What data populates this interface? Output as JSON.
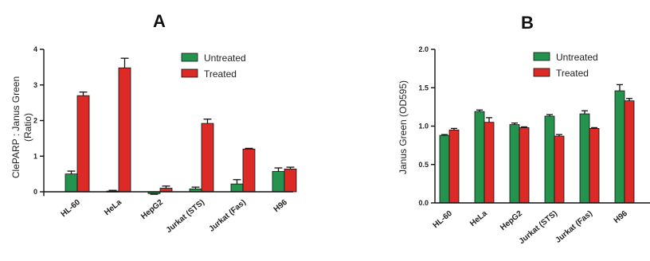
{
  "colors": {
    "untreated": "#24934e",
    "treated": "#dc2a26",
    "axis": "#111111"
  },
  "chart_data": [
    {
      "type": "bar",
      "title": "A",
      "ylabel": [
        "ClePARP : Janus Green",
        "(Ratio)"
      ],
      "ylim": [
        0,
        4
      ],
      "yticks": [
        "0",
        "1",
        "2",
        "3",
        "4"
      ],
      "yticks_values": [
        0,
        1,
        2,
        3,
        4
      ],
      "categories": [
        "HL-60",
        "HeLa",
        "HepG2",
        "Jurkat (STS)",
        "Jurkat (Fas)",
        "H96"
      ],
      "legend": "top-right",
      "series": [
        {
          "name": "Untreated",
          "values": [
            0.5,
            0.02,
            -0.05,
            0.08,
            0.22,
            0.57
          ],
          "errors": [
            0.08,
            0.02,
            0.02,
            0.05,
            0.12,
            0.1
          ]
        },
        {
          "name": "Treated",
          "values": [
            2.7,
            3.48,
            0.1,
            1.92,
            1.2,
            0.64
          ],
          "errors": [
            0.1,
            0.27,
            0.06,
            0.12,
            0.02,
            0.05
          ]
        }
      ]
    },
    {
      "type": "bar",
      "title": "B",
      "ylabel": [
        "Janus Green (OD595)"
      ],
      "ylim": [
        0,
        2.0
      ],
      "yticks": [
        "0.0",
        "0.5",
        "1.0",
        "1.5",
        "2.0"
      ],
      "yticks_values": [
        0,
        0.5,
        1.0,
        1.5,
        2.0
      ],
      "categories": [
        "HL-60",
        "HeLa",
        "HepG2",
        "Jurkat (STS)",
        "Jurkat (Fas)",
        "H96"
      ],
      "legend": "top-right",
      "series": [
        {
          "name": "Untreated",
          "values": [
            0.88,
            1.19,
            1.02,
            1.13,
            1.16,
            1.46
          ],
          "errors": [
            0.01,
            0.02,
            0.02,
            0.02,
            0.04,
            0.08
          ]
        },
        {
          "name": "Treated",
          "values": [
            0.95,
            1.05,
            0.98,
            0.87,
            0.97,
            1.33
          ],
          "errors": [
            0.02,
            0.06,
            0.01,
            0.02,
            0.01,
            0.03
          ]
        }
      ]
    }
  ]
}
